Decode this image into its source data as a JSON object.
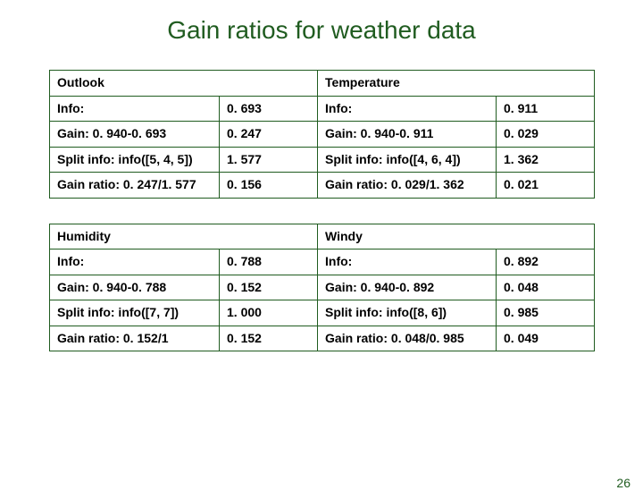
{
  "title": "Gain ratios for weather data",
  "title_color": "#205c20",
  "border_color": "#205c20",
  "text_color": "#000000",
  "page_num_color": "#205c20",
  "page_number": "26",
  "tables": [
    {
      "left_header": "Outlook",
      "right_header": "Temperature",
      "rows": [
        {
          "l_label": "Info:",
          "l_val": "0. 693",
          "r_label": "Info:",
          "r_val": "0. 911"
        },
        {
          "l_label": "Gain: 0. 940-0. 693",
          "l_val": "0. 247",
          "r_label": "Gain: 0. 940-0. 911",
          "r_val": "0. 029"
        },
        {
          "l_label": "Split info: info([5, 4, 5])",
          "l_val": "1. 577",
          "r_label": "Split info: info([4, 6, 4])",
          "r_val": "1. 362"
        },
        {
          "l_label": "Gain ratio: 0. 247/1. 577",
          "l_val": "0. 156",
          "r_label": "Gain ratio: 0. 029/1. 362",
          "r_val": "0. 021"
        }
      ]
    },
    {
      "left_header": "Humidity",
      "right_header": "Windy",
      "rows": [
        {
          "l_label": "Info:",
          "l_val": "0. 788",
          "r_label": "Info:",
          "r_val": "0. 892"
        },
        {
          "l_label": "Gain: 0. 940-0. 788",
          "l_val": "0. 152",
          "r_label": "Gain: 0. 940-0. 892",
          "r_val": "0. 048"
        },
        {
          "l_label": "Split info: info([7, 7])",
          "l_val": "1. 000",
          "r_label": "Split info: info([8, 6])",
          "r_val": "0. 985"
        },
        {
          "l_label": "Gain ratio: 0. 152/1",
          "l_val": "0. 152",
          "r_label": "Gain ratio: 0. 048/0. 985",
          "r_val": "0. 049"
        }
      ]
    }
  ]
}
